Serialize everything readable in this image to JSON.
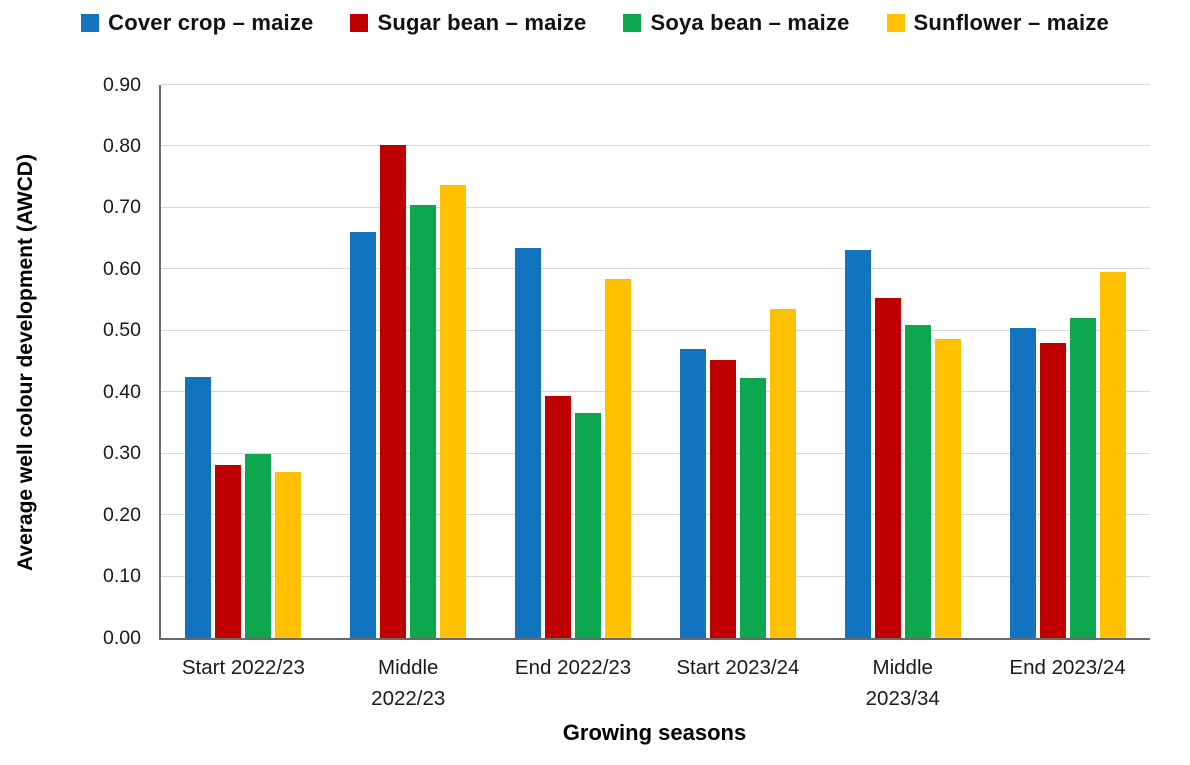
{
  "chart_data": {
    "type": "bar",
    "title": "",
    "xlabel": "Growing seasons",
    "ylabel": "Average well colour development (AWCD)",
    "ylim": [
      0,
      0.9
    ],
    "ytick_step": 0.1,
    "yticks": [
      "0.00",
      "0.10",
      "0.20",
      "0.30",
      "0.40",
      "0.50",
      "0.60",
      "0.70",
      "0.80",
      "0.90"
    ],
    "grid": true,
    "legend_position": "top",
    "categories": [
      "Start 2022/23",
      "Middle\n2022/23",
      "End 2022/23",
      "Start 2023/24",
      "Middle\n2023/34",
      "End 2023/24"
    ],
    "series": [
      {
        "name": "Cover crop – maize",
        "color": "#1273BE",
        "values": [
          0.425,
          0.66,
          0.635,
          0.47,
          0.632,
          0.505
        ]
      },
      {
        "name": "Sugar bean – maize",
        "color": "#C00000",
        "values": [
          0.281,
          0.802,
          0.394,
          0.452,
          0.553,
          0.48
        ]
      },
      {
        "name": "Soya bean – maize",
        "color": "#0DA750",
        "values": [
          0.299,
          0.705,
          0.367,
          0.423,
          0.51,
          0.521
        ]
      },
      {
        "name": "Sunflower – maize",
        "color": "#FFC000",
        "values": [
          0.271,
          0.738,
          0.585,
          0.536,
          0.487,
          0.595
        ]
      }
    ]
  }
}
